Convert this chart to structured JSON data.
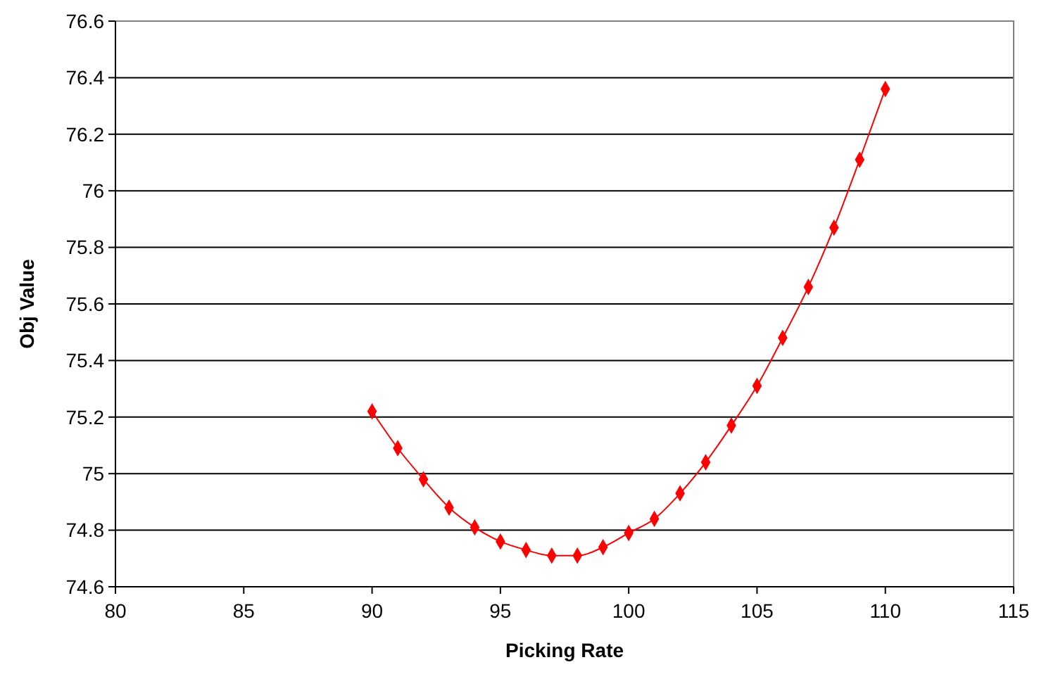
{
  "chart_data": {
    "type": "line",
    "xlabel": "Picking Rate",
    "ylabel": "Obj Value",
    "x": [
      90,
      91,
      92,
      93,
      94,
      95,
      96,
      97,
      98,
      99,
      100,
      101,
      102,
      103,
      104,
      105,
      106,
      107,
      108,
      109,
      110
    ],
    "series": [
      {
        "color": "#ff0000",
        "values": [
          75.22,
          75.09,
          74.98,
          74.88,
          74.81,
          74.76,
          74.73,
          74.71,
          74.71,
          74.74,
          74.79,
          74.84,
          74.93,
          75.04,
          75.17,
          75.31,
          75.48,
          75.66,
          75.87,
          76.11,
          76.36
        ]
      }
    ],
    "xlim": [
      80,
      115
    ],
    "xticks": [
      80,
      85,
      90,
      95,
      100,
      105,
      110,
      115
    ],
    "ylim": [
      74.6,
      76.6
    ],
    "yticks": [
      {
        "value": 74.6,
        "label": "74.6"
      },
      74.8,
      75,
      75.2,
      75.4,
      75.6,
      75.8,
      76,
      76.2,
      76.4,
      76.6
    ],
    "grid": "y",
    "marker": "diamond",
    "line_style": "solid"
  }
}
